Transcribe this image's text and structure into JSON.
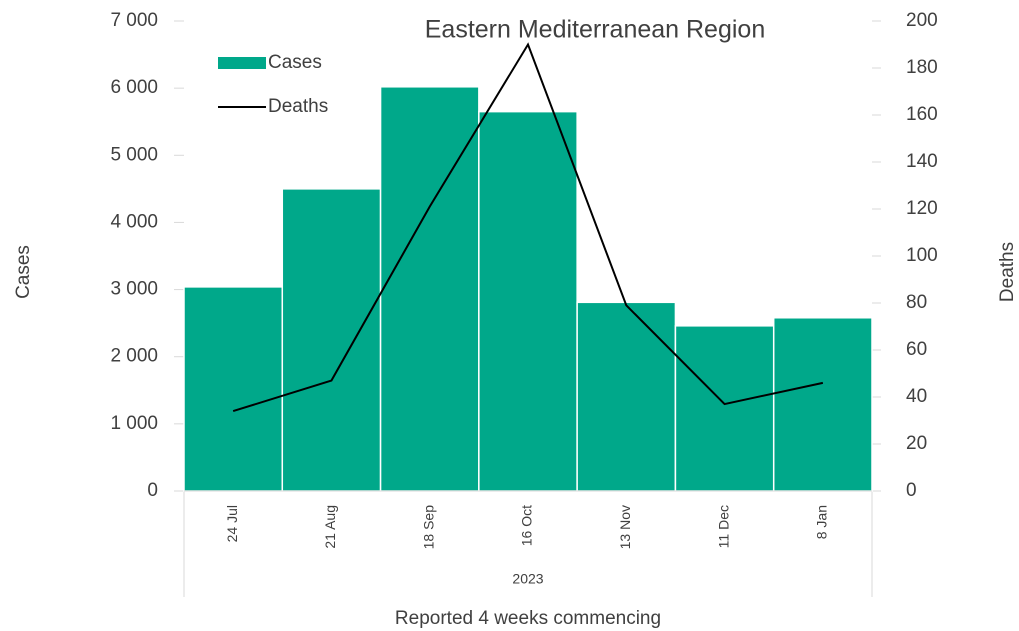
{
  "chart_data": {
    "type": "bar_line",
    "title": "Eastern Mediterranean Region",
    "x_label": "Reported 4 weeks commencing",
    "x_group_label": "2023",
    "y_label": "Cases",
    "y2_label": "Deaths",
    "categories": [
      "24 Jul",
      "21 Aug",
      "18 Sep",
      "16 Oct",
      "13 Nov",
      "11 Dec",
      "8 Jan"
    ],
    "series": [
      {
        "name": "Cases",
        "type": "bar",
        "color": "#00a88a",
        "values": [
          3040,
          4500,
          6020,
          5650,
          2810,
          2460,
          2580
        ]
      },
      {
        "name": "Deaths",
        "type": "line",
        "color": "#000000",
        "axis": "y2",
        "values": [
          34,
          47,
          121,
          190,
          79,
          37,
          46
        ]
      }
    ],
    "ylim": [
      0,
      7000
    ],
    "yticks": [
      0,
      {
        "value": 1000,
        "label": "1 000"
      },
      {
        "value": 2000,
        "label": "2 000"
      },
      {
        "value": 3000,
        "label": "3 000"
      },
      {
        "value": 4000,
        "label": "4 000"
      },
      {
        "value": 5000,
        "label": "5 000"
      },
      {
        "value": 6000,
        "label": "6 000"
      },
      {
        "value": 7000,
        "label": "7 000"
      }
    ],
    "y2lim": [
      0,
      200
    ],
    "y2ticks": [
      0,
      20,
      40,
      60,
      80,
      100,
      120,
      140,
      160,
      180,
      200
    ],
    "legend": "top-left"
  }
}
